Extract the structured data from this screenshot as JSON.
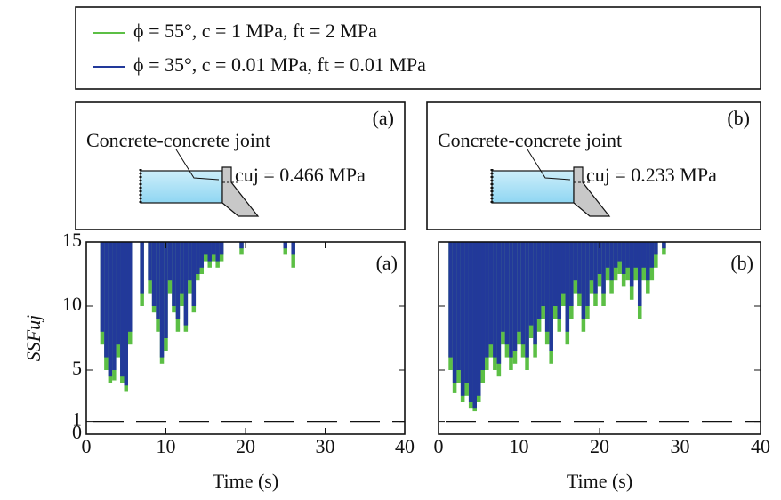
{
  "chart_data": [
    {
      "type": "bar",
      "panel_label": "(a)",
      "inset_title": "Concrete-concrete joint",
      "inset_label": "cuj = 0.466 MPa",
      "xlabel": "Time (s)",
      "ylabel": "SSFuj",
      "xlim": [
        0,
        40
      ],
      "xticks": [
        0,
        10,
        20,
        30,
        40
      ],
      "ylim": [
        0,
        15
      ],
      "yticks": [
        0,
        1,
        5,
        10,
        15
      ],
      "ytick_labels": true,
      "x": [
        2,
        2.5,
        3,
        3.5,
        4,
        4.5,
        5,
        5.5,
        6,
        6.5,
        7,
        7.5,
        8,
        8.5,
        9,
        9.5,
        10,
        10.5,
        11,
        11.5,
        12,
        12.5,
        13,
        13.5,
        14,
        14.5,
        15,
        15.5,
        16,
        16.5,
        17,
        17.5,
        18,
        18.5,
        19,
        19.5,
        20,
        20.5,
        21,
        21.5,
        22,
        22.5,
        23,
        23.5,
        24,
        24.5,
        25,
        25.5,
        26
      ],
      "series": [
        {
          "name": "ϕ = 55°, c = 1 MPa, ft = 2 MPa",
          "color": "#5cbf45",
          "values": [
            7,
            5,
            4,
            4.2,
            6,
            4,
            3.3,
            7,
            15,
            15,
            10,
            15,
            11,
            9.5,
            8,
            5.5,
            6.5,
            11,
            9.5,
            8,
            10,
            8,
            11,
            9.5,
            12,
            12.5,
            13.5,
            13,
            13.5,
            13,
            13.5,
            15,
            15,
            15,
            15,
            14,
            15,
            15,
            15,
            15,
            15,
            15,
            15,
            15,
            15,
            15,
            14,
            15,
            13
          ]
        },
        {
          "name": "ϕ = 35°, c = 0.01 MPa, ft = 0.01 MPa",
          "color": "#22399a",
          "values": [
            8,
            6,
            4.5,
            5,
            7,
            4.5,
            3.8,
            8,
            15,
            15,
            11,
            15,
            12,
            10,
            9,
            6,
            7.5,
            12,
            10,
            9,
            11,
            8.5,
            12,
            10,
            12.5,
            13,
            14,
            13.5,
            14,
            13.5,
            14,
            15,
            15,
            15,
            15,
            14.5,
            15,
            15,
            15,
            15,
            15,
            15,
            15,
            15,
            15,
            15,
            14.5,
            15,
            14
          ]
        }
      ]
    },
    {
      "type": "bar",
      "panel_label": "(b)",
      "inset_title": "Concrete-concrete joint",
      "inset_label": "cuj = 0.233 MPa",
      "xlabel": "Time (s)",
      "xlim": [
        0,
        40
      ],
      "xticks": [
        0,
        10,
        20,
        30,
        40
      ],
      "ylim": [
        0,
        15
      ],
      "yticks": [
        0,
        1,
        5,
        10,
        15
      ],
      "ytick_labels": false,
      "x": [
        1.5,
        2,
        2.5,
        3,
        3.5,
        4,
        4.5,
        5,
        5.5,
        6,
        6.5,
        7,
        7.5,
        8,
        8.5,
        9,
        9.5,
        10,
        10.5,
        11,
        11.5,
        12,
        12.5,
        13,
        13.5,
        14,
        14.5,
        15,
        15.5,
        16,
        16.5,
        17,
        17.5,
        18,
        18.5,
        19,
        19.5,
        20,
        20.5,
        21,
        21.5,
        22,
        22.5,
        23,
        23.5,
        24,
        24.5,
        25,
        25.5,
        26,
        26.5,
        27,
        27.5,
        28
      ],
      "series": [
        {
          "name": "ϕ = 55°, c = 1 MPa, ft = 2 MPa",
          "color": "#5cbf45",
          "values": [
            5,
            3.2,
            4,
            2.5,
            3,
            2,
            1.8,
            2.5,
            4,
            5,
            6,
            5,
            4.5,
            7,
            6,
            5,
            5.5,
            7,
            6,
            5,
            7.5,
            6,
            8,
            9,
            7,
            5.5,
            9,
            8,
            10,
            7,
            9,
            11,
            10,
            8,
            9,
            11,
            10,
            11.5,
            10,
            12,
            11,
            12,
            12.5,
            11.5,
            12,
            10.5,
            12,
            9,
            12,
            11,
            12,
            13,
            15,
            14
          ]
        },
        {
          "name": "ϕ = 35°, c = 0.01 MPa, ft = 0.01 MPa",
          "color": "#22399a",
          "values": [
            6,
            4,
            5,
            3,
            4,
            2.5,
            2,
            3,
            5,
            6,
            7,
            6,
            5.5,
            8,
            7,
            6,
            6.5,
            8,
            7,
            6,
            8.5,
            7,
            9,
            10,
            8,
            6.5,
            10,
            9,
            11,
            8,
            10,
            12,
            11,
            9,
            10,
            12,
            11,
            12.5,
            11,
            13,
            12,
            13,
            13.5,
            12.5,
            13,
            11.5,
            13,
            10,
            13,
            12,
            13,
            14,
            15,
            14.5
          ]
        }
      ]
    }
  ]
}
